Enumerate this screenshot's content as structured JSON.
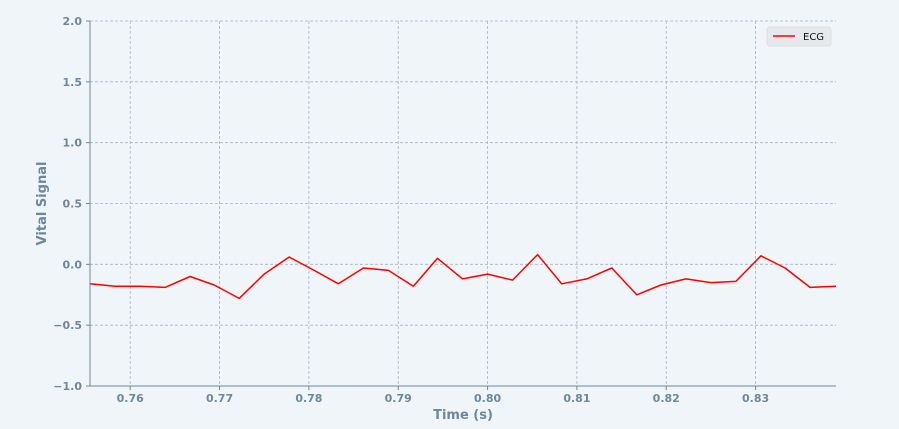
{
  "colors": {
    "background": "#f0f5f9",
    "plot_background": "#f0f5f9",
    "axis_text": "#6e8799",
    "grid": "#a8b4bc",
    "legend_background": "#e6e9ec",
    "series": "#ff0000"
  },
  "chart_data": {
    "type": "line",
    "title": "",
    "xlabel": "Time (s)",
    "ylabel": "Vital Signal",
    "xlim": [
      0.7555,
      0.839
    ],
    "ylim": [
      -1.0,
      2.0
    ],
    "xticks": [
      0.76,
      0.77,
      0.78,
      0.79,
      0.8,
      0.81,
      0.82,
      0.83
    ],
    "xtick_labels": [
      "0.76",
      "0.77",
      "0.78",
      "0.79",
      "0.80",
      "0.81",
      "0.82",
      "0.83"
    ],
    "yticks": [
      -1.0,
      -0.5,
      0.0,
      0.5,
      1.0,
      1.5,
      2.0
    ],
    "ytick_labels": [
      "−1.0",
      "−0.5",
      "0.0",
      "0.5",
      "1.0",
      "1.5",
      "2.0"
    ],
    "grid": true,
    "legend": {
      "position": "top-right",
      "entries": [
        "ECG"
      ]
    },
    "series": [
      {
        "name": "ECG",
        "color": "#ff0000",
        "x": [
          0.7555,
          0.7583,
          0.7611,
          0.7639,
          0.7667,
          0.7694,
          0.7722,
          0.775,
          0.7778,
          0.7806,
          0.7833,
          0.7861,
          0.7889,
          0.7917,
          0.7944,
          0.7972,
          0.8,
          0.8028,
          0.8056,
          0.8083,
          0.8111,
          0.8139,
          0.8167,
          0.8194,
          0.8222,
          0.825,
          0.8278,
          0.8306,
          0.8333,
          0.8361,
          0.839
        ],
        "y": [
          -0.16,
          -0.18,
          -0.18,
          -0.19,
          -0.1,
          -0.17,
          -0.28,
          -0.08,
          0.06,
          -0.05,
          -0.16,
          -0.03,
          -0.05,
          -0.18,
          0.05,
          -0.12,
          -0.08,
          -0.13,
          0.08,
          -0.16,
          -0.12,
          -0.03,
          -0.25,
          -0.17,
          -0.12,
          -0.15,
          -0.14,
          0.07,
          -0.03,
          -0.19,
          -0.18
        ]
      }
    ]
  }
}
